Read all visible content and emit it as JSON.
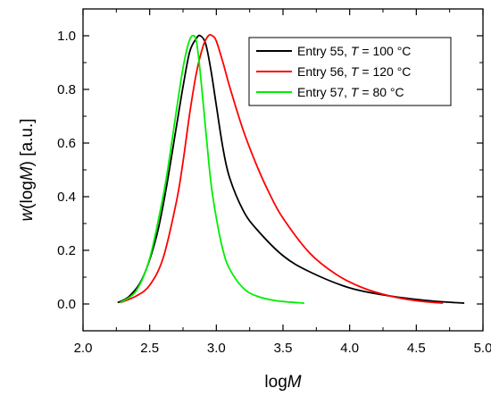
{
  "chart_data": {
    "type": "line",
    "title": "",
    "xlabel": {
      "prefix": "log",
      "italic": "M"
    },
    "ylabel": {
      "italic_w": "w",
      "open": "(log",
      "italic_m": "M",
      "close": ") [a.u.]"
    },
    "xlim": [
      2.0,
      5.0
    ],
    "ylim": [
      -0.1,
      1.1
    ],
    "x_ticks": [
      "2.0",
      "2.5",
      "3.0",
      "3.5",
      "4.0",
      "4.5",
      "5.0"
    ],
    "x_tick_values": [
      2.0,
      2.5,
      3.0,
      3.5,
      4.0,
      4.5,
      5.0
    ],
    "y_ticks": [
      "0.0",
      "0.2",
      "0.4",
      "0.6",
      "0.8",
      "1.0"
    ],
    "y_tick_values": [
      0.0,
      0.2,
      0.4,
      0.6,
      0.8,
      1.0
    ],
    "grid": false,
    "legend_position": "top-right",
    "series": [
      {
        "name": "Entry 55, T = 100 °C",
        "legend": {
          "pre": "Entry 55, ",
          "var": "T",
          "post": " = 100 °C"
        },
        "color": "#000000",
        "x": [
          2.26,
          2.35,
          2.45,
          2.55,
          2.62,
          2.7,
          2.75,
          2.8,
          2.85,
          2.88,
          2.92,
          2.96,
          3.0,
          3.05,
          3.1,
          3.2,
          3.3,
          3.5,
          3.7,
          4.0,
          4.3,
          4.6,
          4.86
        ],
        "y": [
          0.005,
          0.03,
          0.1,
          0.25,
          0.42,
          0.66,
          0.81,
          0.94,
          0.99,
          1.0,
          0.97,
          0.87,
          0.74,
          0.58,
          0.47,
          0.35,
          0.28,
          0.18,
          0.12,
          0.06,
          0.03,
          0.012,
          0.003
        ]
      },
      {
        "name": "Entry 56, T = 120 °C",
        "legend": {
          "pre": "Entry 56, ",
          "var": "T",
          "post": " = 120 °C"
        },
        "color": "#ff0000",
        "x": [
          2.28,
          2.4,
          2.5,
          2.6,
          2.7,
          2.75,
          2.8,
          2.85,
          2.9,
          2.94,
          2.97,
          3.0,
          3.05,
          3.1,
          3.2,
          3.3,
          3.4,
          3.5,
          3.7,
          3.9,
          4.1,
          4.3,
          4.5,
          4.7
        ],
        "y": [
          0.005,
          0.03,
          0.07,
          0.17,
          0.38,
          0.53,
          0.71,
          0.86,
          0.96,
          1.0,
          1.0,
          0.98,
          0.9,
          0.81,
          0.65,
          0.52,
          0.41,
          0.32,
          0.19,
          0.11,
          0.06,
          0.03,
          0.012,
          0.003
        ]
      },
      {
        "name": "Entry 57, T = 80 °C",
        "legend": {
          "pre": "Entry 57, ",
          "var": "T",
          "post": " = 80 °C"
        },
        "color": "#00ee00",
        "x": [
          2.28,
          2.4,
          2.5,
          2.6,
          2.65,
          2.7,
          2.75,
          2.79,
          2.82,
          2.85,
          2.88,
          2.92,
          2.96,
          3.0,
          3.05,
          3.1,
          3.2,
          3.3,
          3.45,
          3.66
        ],
        "y": [
          0.005,
          0.05,
          0.17,
          0.4,
          0.55,
          0.72,
          0.88,
          0.97,
          1.0,
          0.98,
          0.86,
          0.65,
          0.45,
          0.32,
          0.2,
          0.13,
          0.06,
          0.03,
          0.012,
          0.003
        ]
      }
    ]
  }
}
